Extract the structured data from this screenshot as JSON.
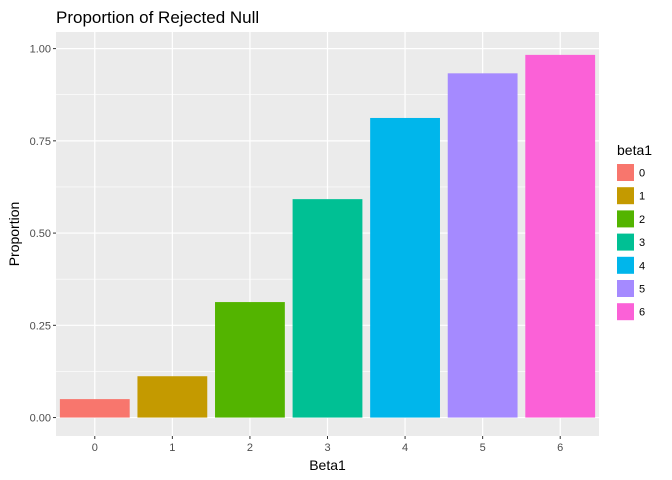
{
  "chart_data": {
    "type": "bar",
    "title": "Proportion of Rejected Null",
    "xlabel": "Beta1",
    "ylabel": "Proportion",
    "categories": [
      "0",
      "1",
      "2",
      "3",
      "4",
      "5",
      "6"
    ],
    "values": [
      0.05,
      0.112,
      0.313,
      0.592,
      0.812,
      0.933,
      0.983
    ],
    "ylim": [
      -0.05,
      1.045
    ],
    "yticks": [
      0.0,
      0.25,
      0.5,
      0.75,
      1.0
    ],
    "ytick_labels": [
      "0.00",
      "0.25",
      "0.50",
      "0.75",
      "1.00"
    ],
    "colors": [
      "#F8766D",
      "#C49A00",
      "#53B400",
      "#00C094",
      "#00B6EB",
      "#A58AFF",
      "#FB61D7"
    ],
    "grid": true,
    "panel_background": "#EBEBEB",
    "legend": {
      "title": "beta1",
      "position": "right",
      "labels": [
        "0",
        "1",
        "2",
        "3",
        "4",
        "5",
        "6"
      ]
    }
  }
}
